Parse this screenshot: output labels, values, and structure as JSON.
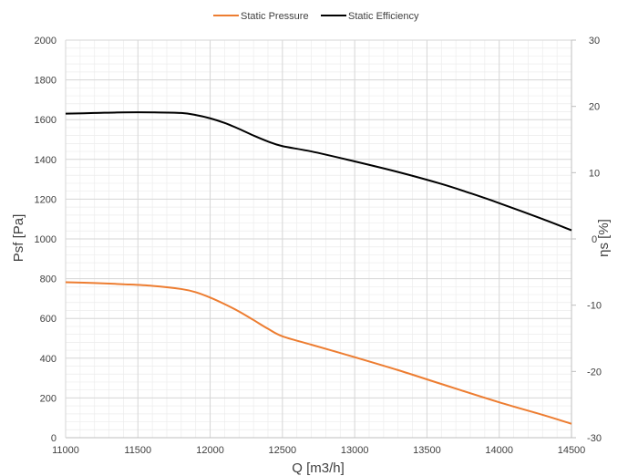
{
  "chart_data": {
    "type": "line",
    "xlabel": "Q [m3/h]",
    "ylabel": "Psf [Pa]",
    "y2label": "ηs [%]",
    "xlim": [
      11000,
      14500
    ],
    "ylim": [
      0,
      2000
    ],
    "y2lim": [
      -30,
      30
    ],
    "x_ticks": [
      11000,
      11500,
      12000,
      12500,
      13000,
      13500,
      14000,
      14500
    ],
    "y_ticks": [
      0,
      200,
      400,
      600,
      800,
      1000,
      1200,
      1400,
      1600,
      1800,
      2000
    ],
    "y2_ticks": [
      -30,
      -20,
      -10,
      0,
      10,
      20,
      30
    ],
    "grid": true,
    "legend_position": "top-center",
    "series": [
      {
        "name": "Static Pressure",
        "axis": "left",
        "color": "#ED7D31",
        "x": [
          11000,
          11200,
          11400,
          11600,
          11800,
          11900,
          12000,
          12100,
          12200,
          12300,
          12400,
          12500,
          12700,
          13000,
          13300,
          13600,
          14000,
          14300,
          14500
        ],
        "y": [
          782,
          778,
          772,
          764,
          748,
          732,
          705,
          672,
          635,
          592,
          548,
          510,
          468,
          405,
          340,
          270,
          178,
          115,
          70
        ]
      },
      {
        "name": "Static Efficiency",
        "axis": "right",
        "color": "#000000",
        "x": [
          11000,
          11200,
          11400,
          11600,
          11800,
          11900,
          12000,
          12100,
          12200,
          12300,
          12400,
          12500,
          12700,
          13000,
          13300,
          13600,
          13800,
          14000,
          14300,
          14500
        ],
        "y": [
          18.9,
          19.0,
          19.1,
          19.1,
          19.0,
          18.7,
          18.2,
          17.5,
          16.6,
          15.6,
          14.7,
          14.0,
          13.2,
          11.7,
          10.1,
          8.3,
          6.9,
          5.4,
          3.0,
          1.3
        ]
      }
    ]
  }
}
